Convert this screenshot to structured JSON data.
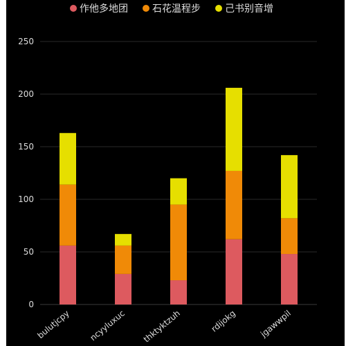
{
  "chart_data": {
    "type": "bar",
    "stacked": true,
    "categories": [
      "bulutjcpy",
      "ncyyluxuc",
      "thktyktzuh",
      "rdijokg",
      "jgawwpil"
    ],
    "series": [
      {
        "name": "作他多地团",
        "color": "#dd5a5f",
        "values": [
          56,
          29,
          23,
          62,
          48
        ]
      },
      {
        "name": "石花温程步",
        "color": "#f08a07",
        "values": [
          58,
          27,
          72,
          65,
          34
        ]
      },
      {
        "name": "己书别音增",
        "color": "#e6df00",
        "values": [
          49,
          11,
          25,
          79,
          60
        ]
      }
    ],
    "ylim": [
      0,
      250
    ],
    "yticks": [
      0,
      50,
      100,
      150,
      200,
      250
    ],
    "legend_position": "top-center",
    "grid": true,
    "background": "#000000",
    "text_color": "#dddddd",
    "grid_color": "#2a2a2a"
  }
}
